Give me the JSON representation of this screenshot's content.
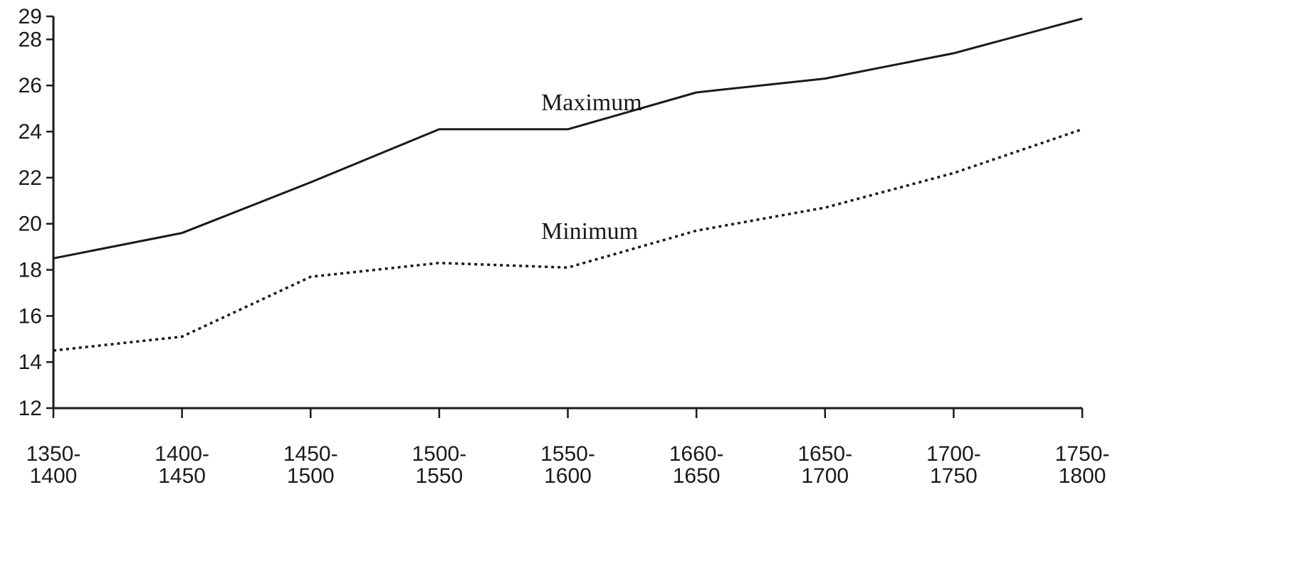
{
  "chart_data": {
    "type": "line",
    "categories": [
      [
        "1350-",
        "1400"
      ],
      [
        "1400-",
        "1450"
      ],
      [
        "1450-",
        "1500"
      ],
      [
        "1500-",
        "1550"
      ],
      [
        "1550-",
        "1600"
      ],
      [
        "1660-",
        "1650"
      ],
      [
        "1650-",
        "1700"
      ],
      [
        "1700-",
        "1750"
      ],
      [
        "1750-",
        "1800"
      ]
    ],
    "y_ticks": [
      12,
      14,
      16,
      18,
      20,
      22,
      24,
      26,
      28,
      29
    ],
    "ylim": [
      12,
      29
    ],
    "grid": false,
    "series": [
      {
        "name": "Maximum",
        "style": "solid",
        "values": [
          18.5,
          19.6,
          21.8,
          24.1,
          24.1,
          25.7,
          26.3,
          27.4,
          28.9
        ]
      },
      {
        "name": "Minimum",
        "style": "dotted",
        "values": [
          14.5,
          15.1,
          17.7,
          18.3,
          18.1,
          19.7,
          20.7,
          22.2,
          24.1
        ]
      }
    ]
  },
  "colors": {
    "ink": "#1a1a1a",
    "background": "#ffffff"
  }
}
